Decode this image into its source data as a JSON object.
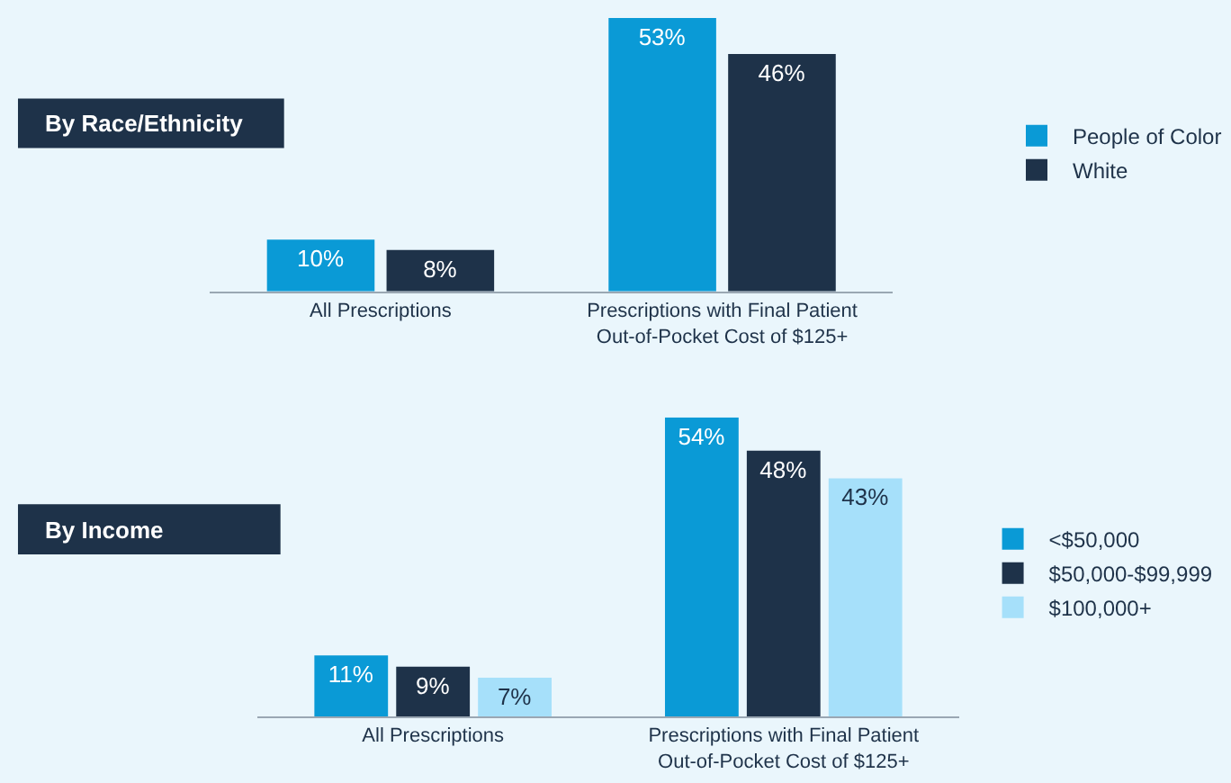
{
  "chart_data": [
    {
      "type": "bar",
      "title": "By Race/Ethnicity",
      "categories": [
        "All Prescriptions",
        "Prescriptions with Final Patient Out-of-Pocket Cost of $125+"
      ],
      "legend": "right",
      "grid": false,
      "series": [
        {
          "name": "People of Color",
          "color": "#0a9ad6",
          "values": [
            10,
            53
          ],
          "value_labels": [
            "10%",
            "53%"
          ]
        },
        {
          "name": "White",
          "color": "#1e3249",
          "values": [
            8,
            46
          ],
          "value_labels": [
            "8%",
            "46%"
          ]
        }
      ]
    },
    {
      "type": "bar",
      "title": "By Income",
      "categories": [
        "All Prescriptions",
        "Prescriptions with Final Patient Out-of-Pocket Cost of $125+"
      ],
      "legend": "right",
      "grid": false,
      "series": [
        {
          "name": "<$50,000",
          "color": "#0a9ad6",
          "values": [
            11,
            54
          ],
          "value_labels": [
            "11%",
            "54%"
          ]
        },
        {
          "name": "$50,000-$99,999",
          "color": "#1e3249",
          "values": [
            9,
            48
          ],
          "value_labels": [
            "9%",
            "48%"
          ]
        },
        {
          "name": "$100,000+",
          "color": "#a6e0fa",
          "values": [
            7,
            43
          ],
          "value_labels": [
            "7%",
            "43%"
          ]
        }
      ]
    }
  ]
}
